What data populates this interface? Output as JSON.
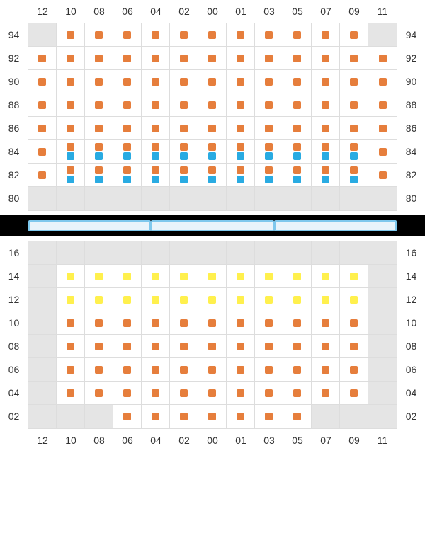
{
  "colors": {
    "orange": "#e67e3c",
    "blue": "#29abe2",
    "yellow": "#fff04d",
    "gray": "#e5e5e5",
    "white": "#ffffff",
    "grid_border": "#dddddd",
    "text": "#333333",
    "divider_bg": "#000000",
    "divider_seg_bg": "#e8f4fb",
    "divider_seg_border": "#7ec8ed"
  },
  "column_labels": [
    "12",
    "10",
    "08",
    "06",
    "04",
    "02",
    "00",
    "01",
    "03",
    "05",
    "07",
    "09",
    "11"
  ],
  "top": {
    "row_labels": [
      "94",
      "92",
      "90",
      "88",
      "86",
      "84",
      "82",
      "80"
    ],
    "cells": [
      [
        [
          "g"
        ],
        [
          "o"
        ],
        [
          "o"
        ],
        [
          "o"
        ],
        [
          "o"
        ],
        [
          "o"
        ],
        [
          "o"
        ],
        [
          "o"
        ],
        [
          "o"
        ],
        [
          "o"
        ],
        [
          "o"
        ],
        [
          "o"
        ],
        [
          "g"
        ]
      ],
      [
        [
          "o"
        ],
        [
          "o"
        ],
        [
          "o"
        ],
        [
          "o"
        ],
        [
          "o"
        ],
        [
          "o"
        ],
        [
          "o"
        ],
        [
          "o"
        ],
        [
          "o"
        ],
        [
          "o"
        ],
        [
          "o"
        ],
        [
          "o"
        ],
        [
          "o"
        ]
      ],
      [
        [
          "o"
        ],
        [
          "o"
        ],
        [
          "o"
        ],
        [
          "o"
        ],
        [
          "o"
        ],
        [
          "o"
        ],
        [
          "o"
        ],
        [
          "o"
        ],
        [
          "o"
        ],
        [
          "o"
        ],
        [
          "o"
        ],
        [
          "o"
        ],
        [
          "o"
        ]
      ],
      [
        [
          "o"
        ],
        [
          "o"
        ],
        [
          "o"
        ],
        [
          "o"
        ],
        [
          "o"
        ],
        [
          "o"
        ],
        [
          "o"
        ],
        [
          "o"
        ],
        [
          "o"
        ],
        [
          "o"
        ],
        [
          "o"
        ],
        [
          "o"
        ],
        [
          "o"
        ]
      ],
      [
        [
          "o"
        ],
        [
          "o"
        ],
        [
          "o"
        ],
        [
          "o"
        ],
        [
          "o"
        ],
        [
          "o"
        ],
        [
          "o"
        ],
        [
          "o"
        ],
        [
          "o"
        ],
        [
          "o"
        ],
        [
          "o"
        ],
        [
          "o"
        ],
        [
          "o"
        ]
      ],
      [
        [
          "o"
        ],
        [
          "o",
          "b"
        ],
        [
          "o",
          "b"
        ],
        [
          "o",
          "b"
        ],
        [
          "o",
          "b"
        ],
        [
          "o",
          "b"
        ],
        [
          "o",
          "b"
        ],
        [
          "o",
          "b"
        ],
        [
          "o",
          "b"
        ],
        [
          "o",
          "b"
        ],
        [
          "o",
          "b"
        ],
        [
          "o",
          "b"
        ],
        [
          "o"
        ]
      ],
      [
        [
          "o"
        ],
        [
          "o",
          "b"
        ],
        [
          "o",
          "b"
        ],
        [
          "o",
          "b"
        ],
        [
          "o",
          "b"
        ],
        [
          "o",
          "b"
        ],
        [
          "o",
          "b"
        ],
        [
          "o",
          "b"
        ],
        [
          "o",
          "b"
        ],
        [
          "o",
          "b"
        ],
        [
          "o",
          "b"
        ],
        [
          "o",
          "b"
        ],
        [
          "o"
        ]
      ],
      [
        [
          "g"
        ],
        [
          "g"
        ],
        [
          "g"
        ],
        [
          "g"
        ],
        [
          "g"
        ],
        [
          "g"
        ],
        [
          "g"
        ],
        [
          "g"
        ],
        [
          "g"
        ],
        [
          "g"
        ],
        [
          "g"
        ],
        [
          "g"
        ],
        [
          "g"
        ]
      ]
    ]
  },
  "bottom": {
    "row_labels": [
      "16",
      "14",
      "12",
      "10",
      "08",
      "06",
      "04",
      "02"
    ],
    "cells": [
      [
        [
          "g"
        ],
        [
          "g"
        ],
        [
          "g"
        ],
        [
          "g"
        ],
        [
          "g"
        ],
        [
          "g"
        ],
        [
          "g"
        ],
        [
          "g"
        ],
        [
          "g"
        ],
        [
          "g"
        ],
        [
          "g"
        ],
        [
          "g"
        ],
        [
          "g"
        ]
      ],
      [
        [
          "g"
        ],
        [
          "y"
        ],
        [
          "y"
        ],
        [
          "y"
        ],
        [
          "y"
        ],
        [
          "y"
        ],
        [
          "y"
        ],
        [
          "y"
        ],
        [
          "y"
        ],
        [
          "y"
        ],
        [
          "y"
        ],
        [
          "y"
        ],
        [
          "g"
        ]
      ],
      [
        [
          "g"
        ],
        [
          "y"
        ],
        [
          "y"
        ],
        [
          "y"
        ],
        [
          "y"
        ],
        [
          "y"
        ],
        [
          "y"
        ],
        [
          "y"
        ],
        [
          "y"
        ],
        [
          "y"
        ],
        [
          "y"
        ],
        [
          "y"
        ],
        [
          "g"
        ]
      ],
      [
        [
          "g"
        ],
        [
          "o"
        ],
        [
          "o"
        ],
        [
          "o"
        ],
        [
          "o"
        ],
        [
          "o"
        ],
        [
          "o"
        ],
        [
          "o"
        ],
        [
          "o"
        ],
        [
          "o"
        ],
        [
          "o"
        ],
        [
          "o"
        ],
        [
          "g"
        ]
      ],
      [
        [
          "g"
        ],
        [
          "o"
        ],
        [
          "o"
        ],
        [
          "o"
        ],
        [
          "o"
        ],
        [
          "o"
        ],
        [
          "o"
        ],
        [
          "o"
        ],
        [
          "o"
        ],
        [
          "o"
        ],
        [
          "o"
        ],
        [
          "o"
        ],
        [
          "g"
        ]
      ],
      [
        [
          "g"
        ],
        [
          "o"
        ],
        [
          "o"
        ],
        [
          "o"
        ],
        [
          "o"
        ],
        [
          "o"
        ],
        [
          "o"
        ],
        [
          "o"
        ],
        [
          "o"
        ],
        [
          "o"
        ],
        [
          "o"
        ],
        [
          "o"
        ],
        [
          "g"
        ]
      ],
      [
        [
          "g"
        ],
        [
          "o"
        ],
        [
          "o"
        ],
        [
          "o"
        ],
        [
          "o"
        ],
        [
          "o"
        ],
        [
          "o"
        ],
        [
          "o"
        ],
        [
          "o"
        ],
        [
          "o"
        ],
        [
          "o"
        ],
        [
          "o"
        ],
        [
          "g"
        ]
      ],
      [
        [
          "g"
        ],
        [
          "g"
        ],
        [
          "g"
        ],
        [
          "o"
        ],
        [
          "o"
        ],
        [
          "o"
        ],
        [
          "o"
        ],
        [
          "o"
        ],
        [
          "o"
        ],
        [
          "o"
        ],
        [
          "g"
        ],
        [
          "g"
        ],
        [
          "g"
        ]
      ]
    ]
  },
  "divider_segments": 3
}
